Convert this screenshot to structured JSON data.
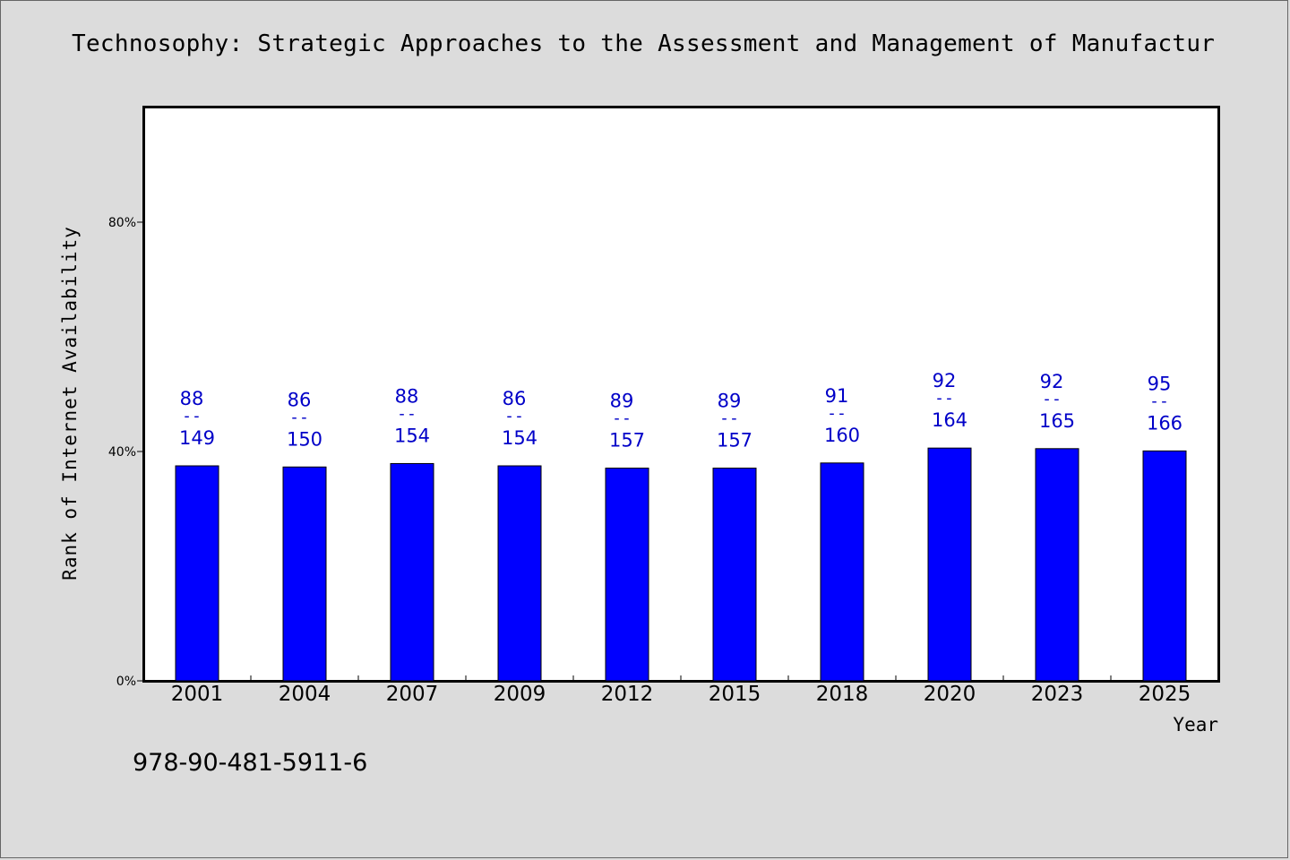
{
  "title": "Technosophy: Strategic Approaches to the Assessment and Management of Manufactur",
  "footer_isbn": "978-90-481-5911-6",
  "chart_data": {
    "type": "bar",
    "title": "Technosophy: Strategic Approaches to the Assessment and Management of Manufactur",
    "xlabel": "Year",
    "ylabel": "Rank of Internet Availability",
    "categories": [
      "2001",
      "2004",
      "2007",
      "2009",
      "2012",
      "2015",
      "2018",
      "2020",
      "2023",
      "2025"
    ],
    "values": [
      37.5,
      37.3,
      37.9,
      37.5,
      37.1,
      37.1,
      38.0,
      40.6,
      40.5,
      40.1
    ],
    "numerators": [
      88,
      86,
      88,
      86,
      89,
      89,
      91,
      92,
      92,
      95
    ],
    "denominators": [
      149,
      150,
      154,
      154,
      157,
      157,
      160,
      164,
      165,
      166
    ],
    "label_separator": "--",
    "yticks": [
      "0%",
      "40%",
      "80%"
    ],
    "ytick_values": [
      0,
      40,
      80
    ],
    "ylim": [
      0,
      100
    ],
    "bar_color": "#0000ff",
    "label_color": "#0000c8",
    "grid": false,
    "legend": "none"
  }
}
